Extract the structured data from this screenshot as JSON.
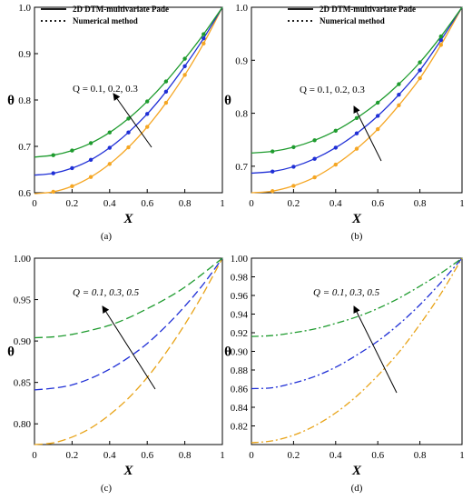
{
  "chart_data": [
    {
      "type": "line",
      "caption": "(a)",
      "xlabel": "X",
      "ylabel": "θ",
      "xlim": [
        0,
        1
      ],
      "ylim": [
        0.6,
        1.0
      ],
      "xticks": [
        "0",
        "0.2",
        "0.4",
        "0.6",
        "0.8",
        "1"
      ],
      "yticks": [
        "0.6",
        "0.7",
        "0.8",
        "0.9",
        "1.0"
      ],
      "legend": [
        "2D DTM-multivariate Pade",
        "Numerical method"
      ],
      "legend_position": "top-left",
      "annotation": "Q = 0.1, 0.2, 0.3",
      "annotation_italic": false,
      "line_style": "solid",
      "markers": true,
      "grid": false,
      "series": [
        {
          "color": "#f5a623",
          "values": [
            [
              0,
              0.598
            ],
            [
              0.1,
              0.602
            ],
            [
              0.2,
              0.614
            ],
            [
              0.3,
              0.634
            ],
            [
              0.4,
              0.662
            ],
            [
              0.5,
              0.698
            ],
            [
              0.6,
              0.742
            ],
            [
              0.7,
              0.794
            ],
            [
              0.8,
              0.854
            ],
            [
              0.9,
              0.922
            ],
            [
              1,
              1.0
            ]
          ]
        },
        {
          "color": "#1f2fd6",
          "values": [
            [
              0,
              0.638
            ],
            [
              0.1,
              0.642
            ],
            [
              0.2,
              0.653
            ],
            [
              0.3,
              0.671
            ],
            [
              0.4,
              0.697
            ],
            [
              0.5,
              0.73
            ],
            [
              0.6,
              0.77
            ],
            [
              0.7,
              0.818
            ],
            [
              0.8,
              0.873
            ],
            [
              0.9,
              0.933
            ],
            [
              1,
              1.0
            ]
          ]
        },
        {
          "color": "#1e9b2e",
          "values": [
            [
              0,
              0.677
            ],
            [
              0.1,
              0.681
            ],
            [
              0.2,
              0.691
            ],
            [
              0.3,
              0.707
            ],
            [
              0.4,
              0.73
            ],
            [
              0.5,
              0.76
            ],
            [
              0.6,
              0.797
            ],
            [
              0.7,
              0.84
            ],
            [
              0.8,
              0.889
            ],
            [
              0.9,
              0.942
            ],
            [
              1,
              1.0
            ]
          ]
        }
      ]
    },
    {
      "type": "line",
      "caption": "(b)",
      "xlabel": "X",
      "ylabel": "θ",
      "xlim": [
        0,
        1
      ],
      "ylim": [
        0.65,
        1.0
      ],
      "xticks": [
        "0",
        "0.2",
        "0.4",
        "0.6",
        "0.8",
        "1"
      ],
      "yticks": [
        "0.7",
        "0.8",
        "0.9",
        "1.0"
      ],
      "legend": [
        "2D DTM-multivariate Pade",
        "Numerical method"
      ],
      "legend_position": "top-left",
      "annotation": "Q = 0.1, 0.2, 0.3",
      "annotation_italic": false,
      "line_style": "solid",
      "markers": true,
      "grid": false,
      "series": [
        {
          "color": "#f5a623",
          "values": [
            [
              0,
              0.65
            ],
            [
              0.1,
              0.653
            ],
            [
              0.2,
              0.663
            ],
            [
              0.3,
              0.679
            ],
            [
              0.4,
              0.703
            ],
            [
              0.5,
              0.733
            ],
            [
              0.6,
              0.77
            ],
            [
              0.7,
              0.815
            ],
            [
              0.8,
              0.866
            ],
            [
              0.9,
              0.929
            ],
            [
              1,
              1.0
            ]
          ]
        },
        {
          "color": "#1f2fd6",
          "values": [
            [
              0,
              0.687
            ],
            [
              0.1,
              0.69
            ],
            [
              0.2,
              0.699
            ],
            [
              0.3,
              0.714
            ],
            [
              0.4,
              0.735
            ],
            [
              0.5,
              0.762
            ],
            [
              0.6,
              0.795
            ],
            [
              0.7,
              0.835
            ],
            [
              0.8,
              0.881
            ],
            [
              0.9,
              0.938
            ],
            [
              1,
              1.0
            ]
          ]
        },
        {
          "color": "#1e9b2e",
          "values": [
            [
              0,
              0.725
            ],
            [
              0.1,
              0.728
            ],
            [
              0.2,
              0.736
            ],
            [
              0.3,
              0.749
            ],
            [
              0.4,
              0.767
            ],
            [
              0.5,
              0.791
            ],
            [
              0.6,
              0.82
            ],
            [
              0.7,
              0.855
            ],
            [
              0.8,
              0.896
            ],
            [
              0.9,
              0.945
            ],
            [
              1,
              1.0
            ]
          ]
        }
      ]
    },
    {
      "type": "line",
      "caption": "(c)",
      "xlabel": "X",
      "ylabel": "θ",
      "xlim": [
        0,
        1
      ],
      "ylim": [
        0.775,
        1.0
      ],
      "xticks": [
        "0",
        "0.2",
        "0.4",
        "0.6",
        "0.8",
        "1"
      ],
      "yticks": [
        "0.80",
        "0.85",
        "0.90",
        "0.95",
        "1.00"
      ],
      "legend": [],
      "annotation": "Q = 0.1, 0.3, 0.5",
      "annotation_italic": true,
      "line_style": "dashed",
      "markers": false,
      "grid": false,
      "series": [
        {
          "color": "#e8a317",
          "values": [
            [
              0,
              0.775
            ],
            [
              0.1,
              0.777
            ],
            [
              0.2,
              0.784
            ],
            [
              0.3,
              0.795
            ],
            [
              0.4,
              0.811
            ],
            [
              0.5,
              0.831
            ],
            [
              0.6,
              0.856
            ],
            [
              0.7,
              0.886
            ],
            [
              0.8,
              0.92
            ],
            [
              0.9,
              0.958
            ],
            [
              1,
              1.0
            ]
          ]
        },
        {
          "color": "#1f2fd6",
          "values": [
            [
              0,
              0.841
            ],
            [
              0.1,
              0.843
            ],
            [
              0.2,
              0.847
            ],
            [
              0.3,
              0.855
            ],
            [
              0.4,
              0.866
            ],
            [
              0.5,
              0.88
            ],
            [
              0.6,
              0.897
            ],
            [
              0.7,
              0.918
            ],
            [
              0.8,
              0.942
            ],
            [
              0.9,
              0.969
            ],
            [
              1,
              1.0
            ]
          ]
        },
        {
          "color": "#1e9b2e",
          "values": [
            [
              0,
              0.904
            ],
            [
              0.1,
              0.905
            ],
            [
              0.2,
              0.908
            ],
            [
              0.3,
              0.913
            ],
            [
              0.4,
              0.919
            ],
            [
              0.5,
              0.928
            ],
            [
              0.6,
              0.939
            ],
            [
              0.7,
              0.951
            ],
            [
              0.8,
              0.965
            ],
            [
              0.9,
              0.982
            ],
            [
              1,
              1.0
            ]
          ]
        }
      ]
    },
    {
      "type": "line",
      "caption": "(d)",
      "xlabel": "X",
      "ylabel": "θ",
      "xlim": [
        0,
        1
      ],
      "ylim": [
        0.8,
        1.0
      ],
      "xticks": [
        "0",
        "0.2",
        "0.4",
        "0.6",
        "0.8",
        "1"
      ],
      "yticks": [
        "0.82",
        "0.84",
        "0.86",
        "0.88",
        "0.90",
        "0.92",
        "0.94",
        "0.96",
        "0.98",
        "1.00"
      ],
      "legend": [],
      "annotation": "Q = 0.1, 0.3, 0.5",
      "annotation_italic": true,
      "line_style": "dashdot",
      "markers": false,
      "grid": false,
      "series": [
        {
          "color": "#e8a317",
          "values": [
            [
              0,
              0.802
            ],
            [
              0.1,
              0.804
            ],
            [
              0.2,
              0.81
            ],
            [
              0.3,
              0.82
            ],
            [
              0.4,
              0.834
            ],
            [
              0.5,
              0.852
            ],
            [
              0.6,
              0.874
            ],
            [
              0.7,
              0.899
            ],
            [
              0.8,
              0.929
            ],
            [
              0.9,
              0.962
            ],
            [
              1,
              1.0
            ]
          ]
        },
        {
          "color": "#1f2fd6",
          "values": [
            [
              0,
              0.86
            ],
            [
              0.1,
              0.861
            ],
            [
              0.2,
              0.866
            ],
            [
              0.3,
              0.873
            ],
            [
              0.4,
              0.883
            ],
            [
              0.5,
              0.896
            ],
            [
              0.6,
              0.911
            ],
            [
              0.7,
              0.929
            ],
            [
              0.8,
              0.95
            ],
            [
              0.9,
              0.974
            ],
            [
              1,
              1.0
            ]
          ]
        },
        {
          "color": "#1e9b2e",
          "values": [
            [
              0,
              0.916
            ],
            [
              0.1,
              0.917
            ],
            [
              0.2,
              0.92
            ],
            [
              0.3,
              0.924
            ],
            [
              0.4,
              0.93
            ],
            [
              0.5,
              0.937
            ],
            [
              0.6,
              0.946
            ],
            [
              0.7,
              0.957
            ],
            [
              0.8,
              0.97
            ],
            [
              0.9,
              0.984
            ],
            [
              1,
              1.0
            ]
          ]
        }
      ]
    }
  ]
}
